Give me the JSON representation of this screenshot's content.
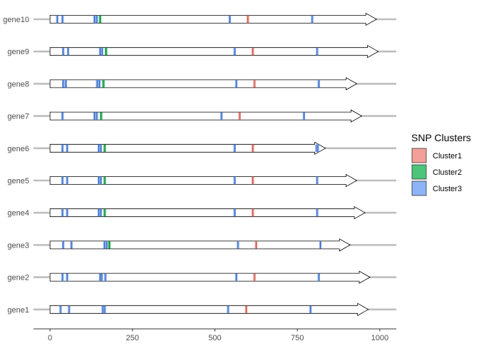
{
  "chart_data": {
    "type": "gene-arrow-map",
    "title": "",
    "xlabel": "",
    "ylabel": "",
    "xlim": [
      -50,
      1050
    ],
    "x_ticks": [
      0,
      250,
      500,
      750,
      1000
    ],
    "x_tick_labels": [
      "0",
      "250",
      "500",
      "750",
      "1000"
    ],
    "grid": false,
    "legend": {
      "title": "SNP Clusters",
      "position": "right",
      "entries": [
        {
          "name": "Cluster1",
          "color": "#F8766D",
          "fill": "#F4A09A"
        },
        {
          "name": "Cluster2",
          "color": "#00BA38",
          "fill": "#4CC47A"
        },
        {
          "name": "Cluster3",
          "color": "#619CFF",
          "fill": "#8DB4F7"
        }
      ]
    },
    "genes": [
      {
        "name": "gene1",
        "start": 0,
        "end": 965,
        "snps": [
          {
            "x": 32,
            "cluster": 3
          },
          {
            "x": 58,
            "cluster": 3
          },
          {
            "x": 160,
            "cluster": 3
          },
          {
            "x": 166,
            "cluster": 3
          },
          {
            "x": 540,
            "cluster": 3
          },
          {
            "x": 595,
            "cluster": 1
          },
          {
            "x": 790,
            "cluster": 3
          }
        ]
      },
      {
        "name": "gene2",
        "start": 0,
        "end": 970,
        "snps": [
          {
            "x": 38,
            "cluster": 3
          },
          {
            "x": 52,
            "cluster": 3
          },
          {
            "x": 152,
            "cluster": 3
          },
          {
            "x": 157,
            "cluster": 3
          },
          {
            "x": 168,
            "cluster": 3
          },
          {
            "x": 565,
            "cluster": 3
          },
          {
            "x": 620,
            "cluster": 1
          },
          {
            "x": 815,
            "cluster": 3
          }
        ]
      },
      {
        "name": "gene3",
        "start": 0,
        "end": 910,
        "snps": [
          {
            "x": 40,
            "cluster": 3
          },
          {
            "x": 65,
            "cluster": 3
          },
          {
            "x": 165,
            "cluster": 3
          },
          {
            "x": 172,
            "cluster": 3
          },
          {
            "x": 180,
            "cluster": 2
          },
          {
            "x": 570,
            "cluster": 3
          },
          {
            "x": 625,
            "cluster": 1
          },
          {
            "x": 820,
            "cluster": 3
          }
        ]
      },
      {
        "name": "gene4",
        "start": 0,
        "end": 955,
        "snps": [
          {
            "x": 38,
            "cluster": 3
          },
          {
            "x": 52,
            "cluster": 3
          },
          {
            "x": 148,
            "cluster": 3
          },
          {
            "x": 154,
            "cluster": 3
          },
          {
            "x": 166,
            "cluster": 2
          },
          {
            "x": 560,
            "cluster": 3
          },
          {
            "x": 615,
            "cluster": 1
          },
          {
            "x": 810,
            "cluster": 3
          }
        ]
      },
      {
        "name": "gene5",
        "start": 0,
        "end": 930,
        "snps": [
          {
            "x": 38,
            "cluster": 3
          },
          {
            "x": 52,
            "cluster": 3
          },
          {
            "x": 148,
            "cluster": 3
          },
          {
            "x": 154,
            "cluster": 3
          },
          {
            "x": 166,
            "cluster": 2
          },
          {
            "x": 560,
            "cluster": 3
          },
          {
            "x": 615,
            "cluster": 1
          },
          {
            "x": 810,
            "cluster": 3
          }
        ]
      },
      {
        "name": "gene6",
        "start": 0,
        "end": 835,
        "snps": [
          {
            "x": 38,
            "cluster": 3
          },
          {
            "x": 52,
            "cluster": 3
          },
          {
            "x": 148,
            "cluster": 3
          },
          {
            "x": 154,
            "cluster": 3
          },
          {
            "x": 166,
            "cluster": 2
          },
          {
            "x": 560,
            "cluster": 3
          },
          {
            "x": 615,
            "cluster": 1
          },
          {
            "x": 808,
            "cluster": 3
          },
          {
            "x": 812,
            "cluster": 3
          }
        ]
      },
      {
        "name": "gene7",
        "start": 0,
        "end": 945,
        "snps": [
          {
            "x": 38,
            "cluster": 3
          },
          {
            "x": 135,
            "cluster": 3
          },
          {
            "x": 142,
            "cluster": 3
          },
          {
            "x": 155,
            "cluster": 2
          },
          {
            "x": 520,
            "cluster": 3
          },
          {
            "x": 575,
            "cluster": 1
          },
          {
            "x": 770,
            "cluster": 3
          }
        ]
      },
      {
        "name": "gene8",
        "start": 0,
        "end": 930,
        "snps": [
          {
            "x": 40,
            "cluster": 3
          },
          {
            "x": 48,
            "cluster": 3
          },
          {
            "x": 143,
            "cluster": 3
          },
          {
            "x": 150,
            "cluster": 3
          },
          {
            "x": 162,
            "cluster": 2
          },
          {
            "x": 565,
            "cluster": 3
          },
          {
            "x": 620,
            "cluster": 1
          },
          {
            "x": 815,
            "cluster": 3
          }
        ]
      },
      {
        "name": "gene9",
        "start": 0,
        "end": 995,
        "snps": [
          {
            "x": 40,
            "cluster": 3
          },
          {
            "x": 55,
            "cluster": 3
          },
          {
            "x": 152,
            "cluster": 3
          },
          {
            "x": 158,
            "cluster": 3
          },
          {
            "x": 170,
            "cluster": 2
          },
          {
            "x": 560,
            "cluster": 3
          },
          {
            "x": 615,
            "cluster": 1
          },
          {
            "x": 810,
            "cluster": 3
          }
        ]
      },
      {
        "name": "gene10",
        "start": 0,
        "end": 990,
        "snps": [
          {
            "x": 22,
            "cluster": 3
          },
          {
            "x": 38,
            "cluster": 3
          },
          {
            "x": 135,
            "cluster": 3
          },
          {
            "x": 142,
            "cluster": 3
          },
          {
            "x": 152,
            "cluster": 2
          },
          {
            "x": 545,
            "cluster": 3
          },
          {
            "x": 600,
            "cluster": 1
          },
          {
            "x": 795,
            "cluster": 3
          }
        ]
      }
    ],
    "colors": {
      "backbone": "#BEBEBE",
      "arrow_fill": "#FFFFFF",
      "arrow_stroke": "#000000",
      "axis": "#333333",
      "tick_label": "#4D4D4D"
    }
  }
}
